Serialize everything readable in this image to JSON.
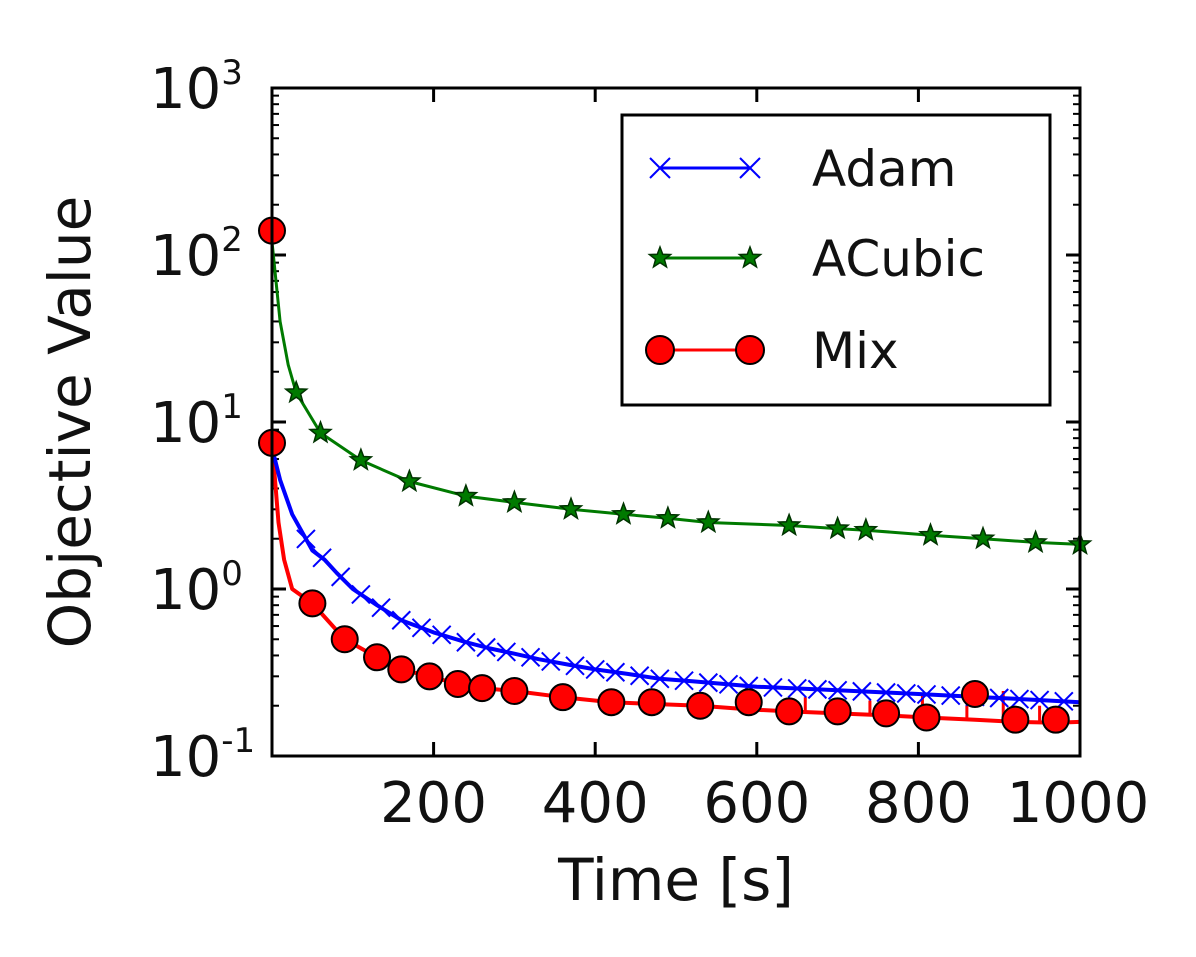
{
  "chart_data": {
    "type": "line",
    "title": "",
    "xlabel": "Time [s]",
    "ylabel": "Objective Value",
    "xlim": [
      0,
      1000
    ],
    "ylim": [
      0.1,
      1000
    ],
    "yscale": "log",
    "grid": false,
    "legend_position": "top-right",
    "x_ticks": [
      {
        "value": 200,
        "label": "200"
      },
      {
        "value": 400,
        "label": "400"
      },
      {
        "value": 600,
        "label": "600"
      },
      {
        "value": 800,
        "label": "800"
      },
      {
        "value": 1000,
        "label": "1000"
      }
    ],
    "y_ticks": [
      {
        "value": 0.1,
        "base": "10",
        "exp": "-1"
      },
      {
        "value": 1,
        "base": "10",
        "exp": "0"
      },
      {
        "value": 10,
        "base": "10",
        "exp": "1"
      },
      {
        "value": 100,
        "base": "10",
        "exp": "2"
      },
      {
        "value": 1000,
        "base": "10",
        "exp": "3"
      }
    ],
    "series": [
      {
        "name": "Adam",
        "color": "#0000ff",
        "marker": "x",
        "x": [
          0,
          10,
          25,
          50,
          65,
          80,
          100,
          130,
          160,
          200,
          240,
          270,
          300,
          330,
          370,
          400,
          440,
          480,
          520,
          560,
          600,
          640,
          680,
          720,
          760,
          800,
          840,
          880,
          920,
          960,
          1000
        ],
        "y": [
          7.0,
          4.5,
          2.8,
          1.7,
          1.5,
          1.25,
          1.0,
          0.8,
          0.65,
          0.55,
          0.48,
          0.44,
          0.41,
          0.38,
          0.35,
          0.33,
          0.31,
          0.29,
          0.28,
          0.27,
          0.26,
          0.255,
          0.25,
          0.245,
          0.24,
          0.235,
          0.23,
          0.225,
          0.22,
          0.215,
          0.21
        ],
        "marker_x": [
          42,
          62,
          85,
          110,
          135,
          160,
          185,
          210,
          240,
          265,
          290,
          320,
          345,
          375,
          400,
          425,
          455,
          480,
          510,
          540,
          565,
          590,
          620,
          650,
          675,
          700,
          730,
          760,
          785,
          810,
          840,
          870,
          900,
          925,
          950,
          980
        ]
      },
      {
        "name": "ACubic",
        "color": "#007a00",
        "marker": "star",
        "x": [
          0,
          10,
          20,
          30,
          60,
          110,
          170,
          240,
          300,
          370,
          435,
          490,
          540,
          640,
          700,
          735,
          815,
          880,
          945,
          1000
        ],
        "y": [
          120,
          40,
          22,
          15,
          8.6,
          5.9,
          4.4,
          3.6,
          3.3,
          3.0,
          2.8,
          2.65,
          2.5,
          2.4,
          2.3,
          2.25,
          2.1,
          2.0,
          1.9,
          1.85
        ],
        "marker_x": [
          30,
          60,
          110,
          170,
          240,
          300,
          370,
          435,
          490,
          540,
          640,
          700,
          735,
          815,
          880,
          945,
          1000
        ]
      },
      {
        "name": "Mix",
        "color": "#ff0000",
        "marker": "circle",
        "x": [
          0,
          8,
          15,
          25,
          50,
          90,
          130,
          160,
          195,
          230,
          260,
          300,
          360,
          420,
          470,
          530,
          590,
          640,
          700,
          760,
          810,
          870,
          920,
          970,
          1000
        ],
        "y": [
          7.5,
          2.5,
          1.5,
          1.0,
          0.82,
          0.5,
          0.39,
          0.33,
          0.3,
          0.27,
          0.255,
          0.245,
          0.225,
          0.21,
          0.205,
          0.2,
          0.19,
          0.185,
          0.18,
          0.175,
          0.17,
          0.165,
          0.16,
          0.158,
          0.16
        ],
        "markers": [
          {
            "x": 0,
            "y": 140
          },
          {
            "x": 0,
            "y": 7.5
          },
          {
            "x": 50,
            "y": 0.82
          },
          {
            "x": 90,
            "y": 0.5
          },
          {
            "x": 130,
            "y": 0.39
          },
          {
            "x": 160,
            "y": 0.33
          },
          {
            "x": 195,
            "y": 0.3
          },
          {
            "x": 230,
            "y": 0.27
          },
          {
            "x": 260,
            "y": 0.255
          },
          {
            "x": 300,
            "y": 0.245
          },
          {
            "x": 360,
            "y": 0.225
          },
          {
            "x": 420,
            "y": 0.21
          },
          {
            "x": 470,
            "y": 0.21
          },
          {
            "x": 530,
            "y": 0.2
          },
          {
            "x": 590,
            "y": 0.21
          },
          {
            "x": 640,
            "y": 0.185
          },
          {
            "x": 700,
            "y": 0.185
          },
          {
            "x": 760,
            "y": 0.18
          },
          {
            "x": 810,
            "y": 0.17
          },
          {
            "x": 870,
            "y": 0.235
          },
          {
            "x": 920,
            "y": 0.165
          },
          {
            "x": 970,
            "y": 0.165
          }
        ]
      }
    ]
  }
}
